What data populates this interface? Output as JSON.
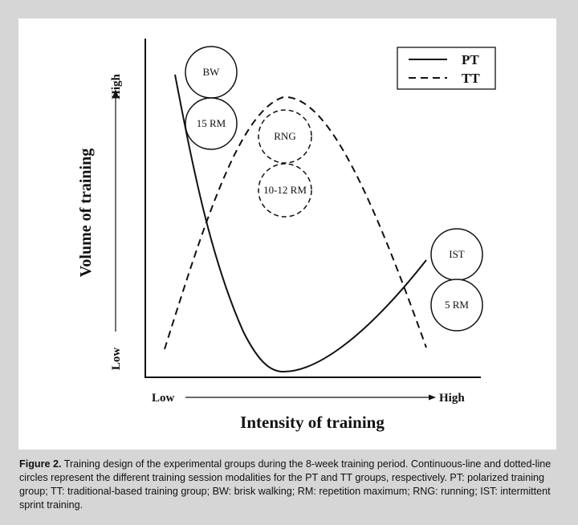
{
  "diagram": {
    "x_axis": {
      "label": "Intensity of training",
      "low": "Low",
      "high": "High"
    },
    "y_axis": {
      "label": "Volume of training",
      "low": "Low",
      "high": "High"
    },
    "legend": [
      {
        "label": "PT",
        "style": "solid"
      },
      {
        "label": "TT",
        "style": "dashed"
      }
    ],
    "pt_circles": [
      "BW",
      "15 RM",
      "IST",
      "5 RM"
    ],
    "tt_circles": [
      "RNG",
      "10-12 RM"
    ]
  },
  "caption": {
    "label": "Figure 2.",
    "text": " Training design of the experimental groups during the 8-week training period. Continuous-line and dotted-line circles represent the different training session modalities for the PT and TT groups, respectively. PT: polarized training group; TT: traditional-based training group; BW: brisk walking; RM: repetition maximum; RNG: running; IST: intermittent sprint training."
  },
  "colors": {
    "background": "#d6d6d6",
    "panel": "#ffffff",
    "ink": "#111111"
  }
}
